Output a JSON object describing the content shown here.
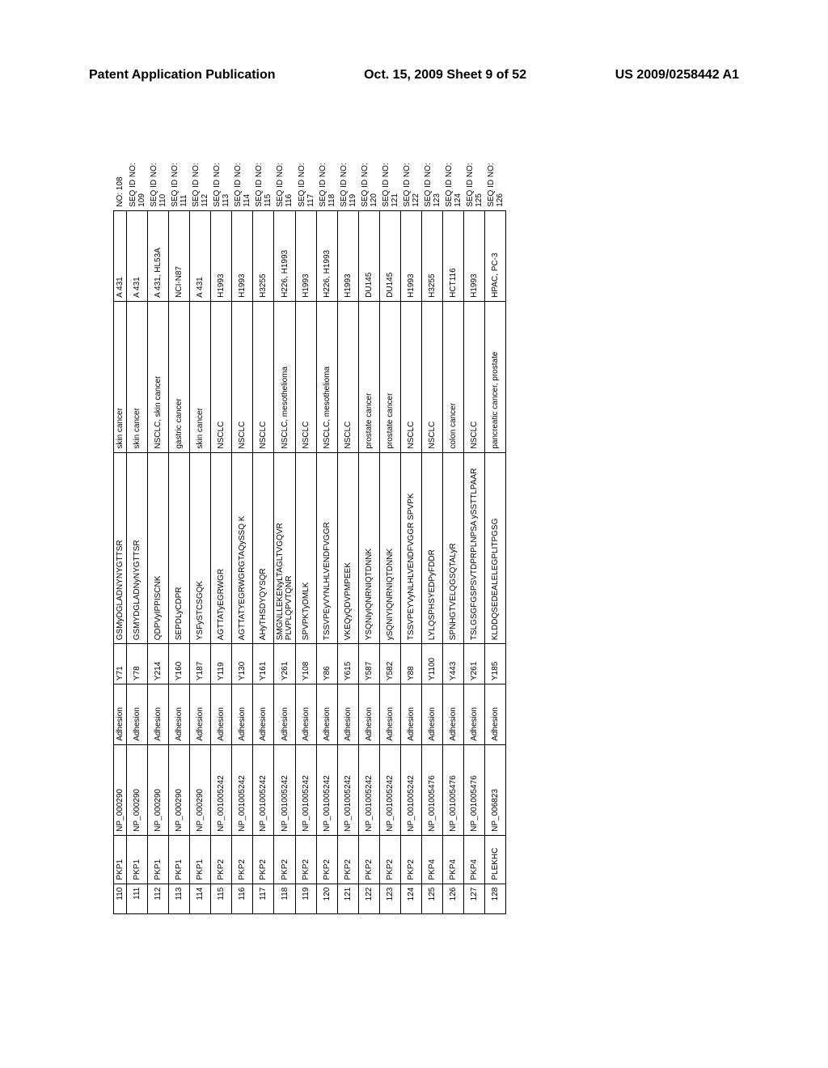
{
  "header": {
    "left": "Patent Application Publication",
    "center": "Oct. 15, 2009  Sheet 9 of 52",
    "right": "US 2009/0258442 A1"
  },
  "table": {
    "font_size": 10,
    "border_color": "#000000",
    "background": "#ffffff",
    "rows": [
      [
        "110",
        "PKP1",
        "NP_000290",
        "Adhesion",
        "Y71",
        "GSMyDGLADNYNYGTTSR",
        "skin cancer",
        "A 431",
        "NO: 108"
      ],
      [
        "111",
        "PKP1",
        "NP_000290",
        "Adhesion",
        "Y78",
        "GSMYDGLADNyNYGTTSR",
        "skin cancer",
        "A 431",
        "SEQ ID NO: 109"
      ],
      [
        "112",
        "PKP1",
        "NP_000290",
        "Adhesion",
        "Y214",
        "QDPVyIPPISCNK",
        "NSCLC, skin cancer",
        "A 431, HL53A",
        "SEQ ID NO: 110"
      ],
      [
        "113",
        "PKP1",
        "NP_000290",
        "Adhesion",
        "Y160",
        "SEPDLyCDPR",
        "gastric cancer",
        "NCI-N87",
        "SEQ ID NO: 111"
      ],
      [
        "114",
        "PKP1",
        "NP_000290",
        "Adhesion",
        "Y187",
        "YSFySTCSGQK",
        "skin cancer",
        "A 431",
        "SEQ ID NO: 112"
      ],
      [
        "115",
        "PKP2",
        "NP_001005242",
        "Adhesion",
        "Y119",
        "AGTTATyEGRWGR",
        "NSCLC",
        "H1993",
        "SEQ ID NO: 113"
      ],
      [
        "116",
        "PKP2",
        "NP_001005242",
        "Adhesion",
        "Y130",
        "AGTTATYEGRWGRGTAQySSQ K",
        "NSCLC",
        "H1993",
        "SEQ ID NO: 114"
      ],
      [
        "117",
        "PKP2",
        "NP_001005242",
        "Adhesion",
        "Y161",
        "AHyTHSDYQYSQR",
        "NSCLC",
        "H3255",
        "SEQ ID NO: 115"
      ],
      [
        "118",
        "PKP2",
        "NP_001005242",
        "Adhesion",
        "Y261",
        "SMGNLLEKENyLTAGLTVGQVR PLVPLQPVTQNR",
        "NSCLC, mesothelioma",
        "H226, H1993",
        "SEQ ID NO: 116"
      ],
      [
        "119",
        "PKP2",
        "NP_001005242",
        "Adhesion",
        "Y108",
        "SPVPKTyDMLK",
        "NSCLC",
        "H1993",
        "SEQ ID NO: 117"
      ],
      [
        "120",
        "PKP2",
        "NP_001005242",
        "Adhesion",
        "Y86",
        "TSSVPEyVYNLHLVENDFVGGR",
        "NSCLC, mesothelioma",
        "H226, H1993",
        "SEQ ID NO: 118"
      ],
      [
        "121",
        "PKP2",
        "NP_001005242",
        "Adhesion",
        "Y615",
        "VKEQyQDVPMPEEK",
        "NSCLC",
        "H1993",
        "SEQ ID NO: 119"
      ],
      [
        "122",
        "PKP2",
        "NP_001005242",
        "Adhesion",
        "Y587",
        "YSQNIyIQNRNIQTDNNK",
        "prostate cancer",
        "DU145",
        "SEQ ID NO: 120"
      ],
      [
        "123",
        "PKP2",
        "NP_001005242",
        "Adhesion",
        "Y582",
        "ySQNIYIQNRNIQTDNNK",
        "prostate cancer",
        "DU145",
        "SEQ ID NO: 121"
      ],
      [
        "124",
        "PKP2",
        "NP_001005242",
        "Adhesion",
        "Y88",
        "TSSVPEYVyNLHLVENDFVGGR SPVPK",
        "NSCLC",
        "H1993",
        "SEQ ID NO: 122"
      ],
      [
        "125",
        "PKP4",
        "NP_001005476",
        "Adhesion",
        "Y1100",
        "LYLQSPHSYEDPyFDDR",
        "NSCLC",
        "H3255",
        "SEQ ID NO: 123"
      ],
      [
        "126",
        "PKP4",
        "NP_001005476",
        "Adhesion",
        "Y443",
        "SPNHGTVELQGSQTALyR",
        "colon cancer",
        "HCT116",
        "SEQ ID NO: 124"
      ],
      [
        "127",
        "PKP4",
        "NP_001005476",
        "Adhesion",
        "Y261",
        "TSLGSGFGSPSVTDPRPLNPSA ySSTTLPAAR",
        "NSCLC",
        "H1993",
        "SEQ ID NO: 125"
      ],
      [
        "128",
        "PLEKHC",
        "NP_006823",
        "Adhesion",
        "Y185",
        "KLDDQSEDEALELEGPLITPGSG",
        "pancreatic cancer, prostate",
        "HPAC, PC-3",
        "SEQ ID NO: 126"
      ]
    ]
  }
}
